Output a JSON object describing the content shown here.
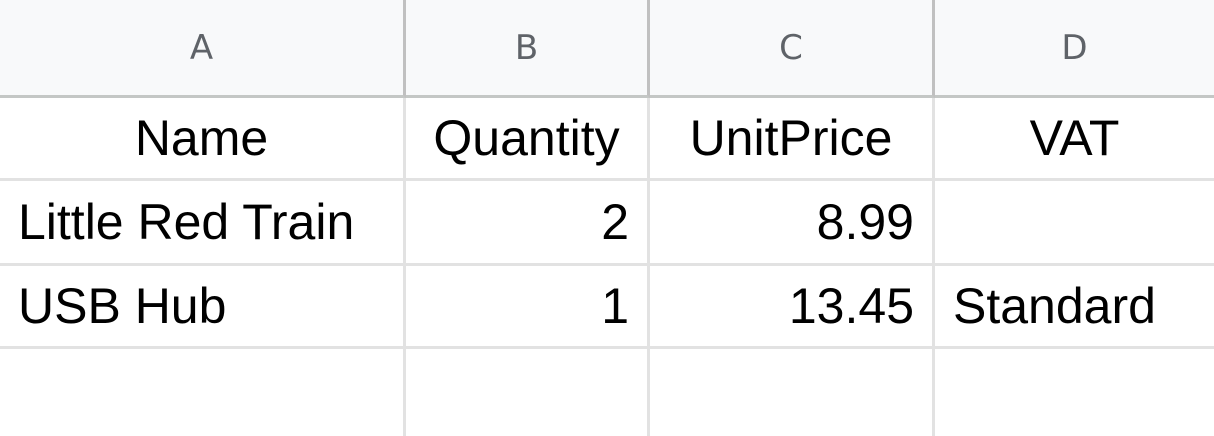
{
  "columns": [
    "A",
    "B",
    "C",
    "D"
  ],
  "header_row": [
    "Name",
    "Quantity",
    "UnitPrice",
    "VAT"
  ],
  "rows": [
    {
      "name": "Little Red Train",
      "quantity": "2",
      "unit_price": "8.99",
      "vat": ""
    },
    {
      "name": "USB Hub",
      "quantity": "1",
      "unit_price": "13.45",
      "vat": "Standard"
    },
    {
      "name": "",
      "quantity": "",
      "unit_price": "",
      "vat": ""
    }
  ]
}
